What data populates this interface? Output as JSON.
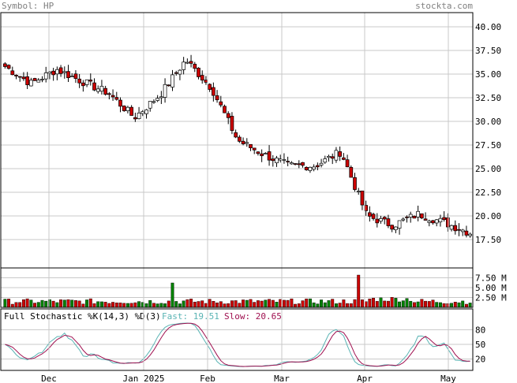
{
  "header": {
    "symbol_label": "Symbol: HP",
    "site": "stockta.com"
  },
  "colors": {
    "grid": "#c8c8c8",
    "border": "#000000",
    "up_candle_fill": "#ffffff",
    "down_candle_fill": "#cc0000",
    "volume_up": "#008000",
    "volume_down": "#cc0000",
    "fast_line": "#5ab4b4",
    "slow_line": "#a01050",
    "header_text": "#808080",
    "label_text": "#000000"
  },
  "chart_data": [
    {
      "type": "candlestick",
      "panel": "price",
      "ylim": [
        14.5,
        41.5
      ],
      "y_ticks": [
        "40.00",
        "37.50",
        "35.00",
        "32.50",
        "30.00",
        "27.50",
        "25.00",
        "22.50",
        "20.00",
        "17.50"
      ],
      "x_ticks": [
        "Dec",
        "Jan 2025",
        "Feb",
        "Mar",
        "Apr",
        "May"
      ],
      "approx_close_path": [
        {
          "t": "early Nov",
          "close": 35.8
        },
        {
          "t": "mid Nov",
          "close": 34.0
        },
        {
          "t": "late Nov",
          "close": 35.5
        },
        {
          "t": "early Dec",
          "close": 34.2
        },
        {
          "t": "mid Dec",
          "close": 33.0
        },
        {
          "t": "late Dec",
          "close": 30.4
        },
        {
          "t": "early Jan",
          "close": 32.8
        },
        {
          "t": "mid Jan",
          "close": 36.5
        },
        {
          "t": "late Jan",
          "close": 33.5
        },
        {
          "t": "early Feb",
          "close": 28.0
        },
        {
          "t": "mid Feb",
          "close": 26.5
        },
        {
          "t": "late Feb",
          "close": 25.3
        },
        {
          "t": "mid Mar",
          "close": 25.3
        },
        {
          "t": "late Mar",
          "close": 26.8
        },
        {
          "t": "early Apr",
          "close": 20.0
        },
        {
          "t": "mid Apr",
          "close": 19.0
        },
        {
          "t": "late Apr",
          "close": 20.2
        },
        {
          "t": "early May",
          "close": 19.3
        },
        {
          "t": "mid May",
          "close": 18.2
        }
      ]
    },
    {
      "type": "bar",
      "panel": "volume",
      "ylabel_ticks": [
        "7.50 M",
        "5.00 M",
        "2.50 M"
      ],
      "ylim": [
        0,
        10
      ],
      "notable_spikes_millions": [
        {
          "t": "late Dec",
          "value": 3.1
        },
        {
          "t": "early Feb",
          "value": 4.8
        }
      ]
    },
    {
      "type": "line",
      "panel": "stochastic",
      "title": "Full Stochastic %K(14,3) %D(3)",
      "series": [
        {
          "name": "Fast",
          "last": "19.51"
        },
        {
          "name": "Slow",
          "last": "20.65"
        }
      ],
      "y_ticks": [
        "80",
        "50",
        "20"
      ],
      "ylim": [
        0,
        100
      ]
    }
  ]
}
